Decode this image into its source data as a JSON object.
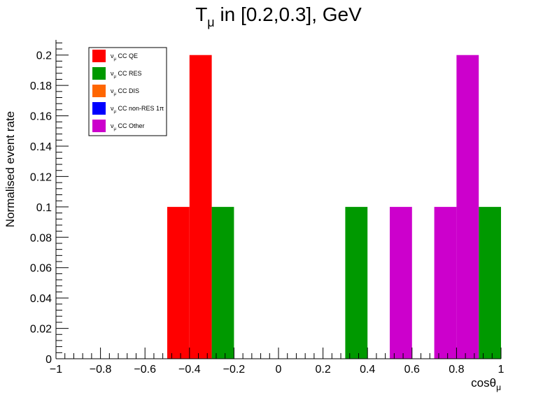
{
  "chart_data": {
    "type": "bar",
    "title_main": "T",
    "title_sub": "μ",
    "title_rest": " in [0.2,0.3], GeV",
    "ylabel": "Normalised event rate",
    "xlabel_main": "cosθ",
    "xlabel_sub": "μ",
    "xlim": [
      -1,
      1
    ],
    "ylim": [
      0,
      0.21
    ],
    "x_ticks": [
      -1,
      -0.8,
      -0.6,
      -0.4,
      -0.2,
      0,
      0.2,
      0.4,
      0.6,
      0.8,
      1
    ],
    "x_tick_labels": [
      "−1",
      "−0.8",
      "−0.6",
      "−0.4",
      "−0.2",
      "0",
      "0.2",
      "0.4",
      "0.6",
      "0.8",
      "1"
    ],
    "y_ticks": [
      0,
      0.02,
      0.04,
      0.06,
      0.08,
      0.1,
      0.12,
      0.14,
      0.16,
      0.18,
      0.2
    ],
    "y_tick_labels": [
      "0",
      "0.02",
      "0.04",
      "0.06",
      "0.08",
      "0.1",
      "0.12",
      "0.14",
      "0.16",
      "0.18",
      "0.2"
    ],
    "bin_width": 0.1,
    "grid": false,
    "legend_position": "top-left",
    "series": [
      {
        "name": "CC QE",
        "prefix": "ν",
        "prefix_sub": "μ",
        "color": "#ff0000",
        "bins": [
          {
            "x": -0.5,
            "y": 0.1
          },
          {
            "x": -0.4,
            "y": 0.2
          }
        ]
      },
      {
        "name": "CC RES",
        "prefix": "ν",
        "prefix_sub": "μ",
        "color": "#009900",
        "bins": [
          {
            "x": -0.3,
            "y": 0.1
          },
          {
            "x": 0.3,
            "y": 0.1
          },
          {
            "x": 0.9,
            "y": 0.1
          }
        ]
      },
      {
        "name": "CC DIS",
        "prefix": "ν",
        "prefix_sub": "μ",
        "color": "#ff6600",
        "bins": []
      },
      {
        "name": "CC non-RES 1π",
        "prefix": "ν",
        "prefix_sub": "μ",
        "color": "#0000ff",
        "bins": []
      },
      {
        "name": "CC Other",
        "prefix": "ν",
        "prefix_sub": "μ",
        "color": "#cc00cc",
        "bins": [
          {
            "x": 0.5,
            "y": 0.1
          },
          {
            "x": 0.7,
            "y": 0.1
          },
          {
            "x": 0.8,
            "y": 0.2
          }
        ]
      }
    ]
  }
}
